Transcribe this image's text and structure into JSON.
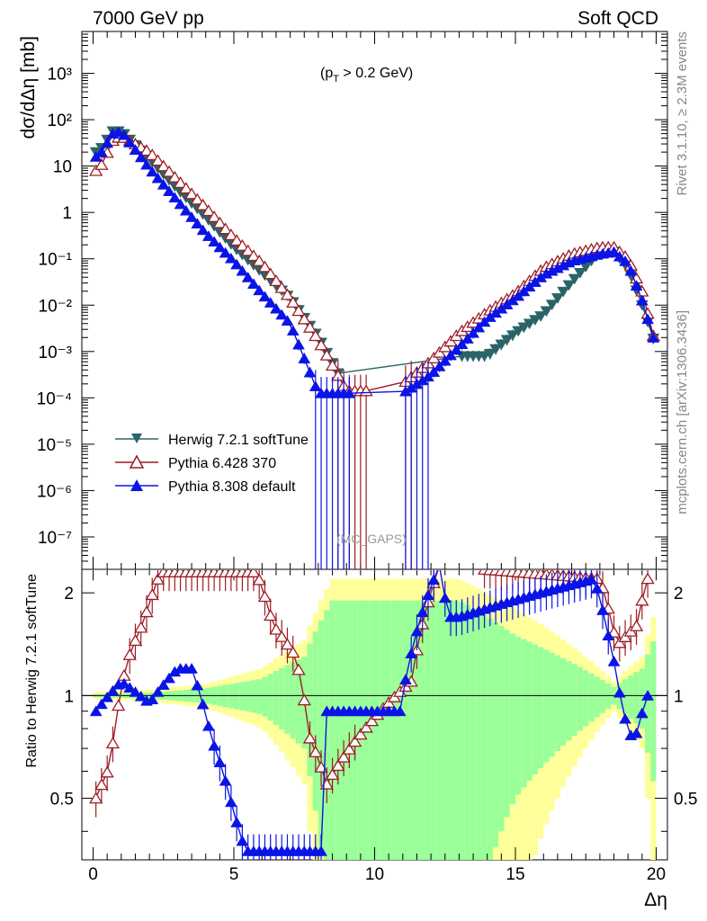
{
  "header": {
    "left_title": "7000 GeV pp",
    "right_title": "Soft QCD",
    "cut_prefix": "(p",
    "cut_sub": "T",
    "cut_suffix": " > 0.2 GeV)",
    "watermark": "(MC_GAPS)",
    "side_rivet": "Rivet 3.1.10, ≥ 2.3M events",
    "side_mcplots": "mcplots.cern.ch [arXiv:1306.3436]"
  },
  "chart_data": [
    {
      "type": "line",
      "panel": "main",
      "ylabel": "dσ/dΔη [mb]",
      "yscale": "log",
      "ylim": [
        2e-08,
        8000
      ],
      "xlim": [
        -0.4,
        20.4
      ],
      "y_tick_labels": [
        "10⁻⁷",
        "10⁻⁶",
        "10⁻⁵",
        "10⁻⁴",
        "10⁻³",
        "10⁻²",
        "10⁻¹",
        "1",
        "10",
        "10²",
        "10³"
      ],
      "x_knots": [
        0.2,
        0.7,
        1,
        2,
        3,
        4,
        5,
        6,
        7,
        8,
        9,
        10,
        11,
        12,
        13,
        14,
        15,
        16,
        17,
        18,
        18.5,
        19,
        19.5,
        20
      ],
      "series": [
        {
          "name": "Herwig 7.2.1 softTune",
          "color": "#2a6468",
          "marker": "triangle-down-filled",
          "log10_knots": [
            1.3,
            1.75,
            1.75,
            1.15,
            0.5,
            -0.1,
            -0.75,
            -1.3,
            -1.85,
            -2.7,
            -3.8,
            -3.8,
            -3.8,
            -3.8,
            -3.1,
            -3.1,
            -2.6,
            -2.2,
            -1.5,
            -0.85,
            -0.85,
            -1.2,
            -2.0,
            -2.9
          ],
          "missing_range": [
            8.9,
            13.0
          ]
        },
        {
          "name": "Pythia 6.428 370",
          "color": "#9c1c24",
          "marker": "triangle-up-open",
          "log10_knots": [
            0.9,
            1.55,
            1.65,
            1.3,
            0.7,
            0.1,
            -0.55,
            -1.1,
            -1.85,
            -2.75,
            -3.85,
            -3.85,
            -3.7,
            -3.2,
            -2.6,
            -2.15,
            -1.75,
            -1.2,
            -0.9,
            -0.75,
            -0.75,
            -1.0,
            -1.7,
            -2.9
          ],
          "missing_range": [
            9.8,
            10.9
          ]
        },
        {
          "name": "Pythia 8.308 default",
          "color": "#0a14e6",
          "marker": "triangle-up-filled",
          "log10_knots": [
            1.2,
            1.7,
            1.75,
            0.95,
            0.25,
            -0.45,
            -1.05,
            -1.75,
            -2.4,
            -3.9,
            -3.9,
            -3.9,
            -3.9,
            -3.5,
            -2.9,
            -2.3,
            -1.85,
            -1.35,
            -1.05,
            -0.9,
            -0.85,
            -1.1,
            -1.9,
            -2.9
          ],
          "missing_range": [
            9.2,
            11.0
          ]
        }
      ]
    },
    {
      "type": "line",
      "panel": "ratio",
      "ylabel": "Ratio to Herwig 7.2.1 softTune",
      "xlabel": "Δη",
      "ylim": [
        0.33,
        2.33
      ],
      "y_tick_labels": [
        "0.5",
        "1",
        "2"
      ],
      "x_tick_labels": [
        "0",
        "5",
        "10",
        "15",
        "20"
      ],
      "band_x_knots": [
        0,
        2,
        4,
        6,
        7.5,
        8.5,
        13,
        15,
        17,
        18.5,
        19.5,
        20
      ],
      "band_inner": [
        0.01,
        0.02,
        0.05,
        0.12,
        0.3,
        0.9,
        0.9,
        0.5,
        0.25,
        0.06,
        0.2,
        0.5
      ],
      "band_outer": [
        0.02,
        0.04,
        0.08,
        0.2,
        0.45,
        1.2,
        1.2,
        0.8,
        0.4,
        0.1,
        0.3,
        0.8
      ],
      "series": [
        {
          "name": "Pythia 6.428 370 / Herwig",
          "color": "#9c1c24",
          "marker": "triangle-up-open",
          "x_knots": [
            0.1,
            0.6,
            1.2,
            1.8,
            2.4,
            5.8,
            6.4,
            7.2,
            7.7,
            8.3,
            11.3,
            12.3,
            18.0,
            18.6,
            19.3,
            19.7
          ],
          "ratio_knots": [
            0.5,
            0.62,
            1.25,
            1.65,
            2.3,
            2.3,
            1.6,
            1.3,
            0.75,
            0.55,
            1.1,
            2.4,
            2.2,
            1.4,
            1.6,
            2.2
          ]
        },
        {
          "name": "Pythia 8.308 default / Herwig",
          "color": "#0a14e6",
          "marker": "triangle-up-filled",
          "x_knots": [
            0.1,
            1.0,
            2.0,
            3.0,
            3.5,
            4.2,
            5.0,
            5.4,
            8.1,
            8.3,
            10.9,
            12.3,
            12.6,
            13.0,
            17.8,
            18.3,
            18.8,
            19.2,
            19.7
          ],
          "ratio_knots": [
            0.9,
            1.1,
            0.95,
            1.2,
            1.2,
            0.75,
            0.45,
            0.35,
            0.35,
            0.9,
            0.9,
            2.4,
            1.7,
            1.7,
            2.2,
            1.5,
            0.9,
            0.72,
            1.0
          ]
        }
      ]
    }
  ]
}
